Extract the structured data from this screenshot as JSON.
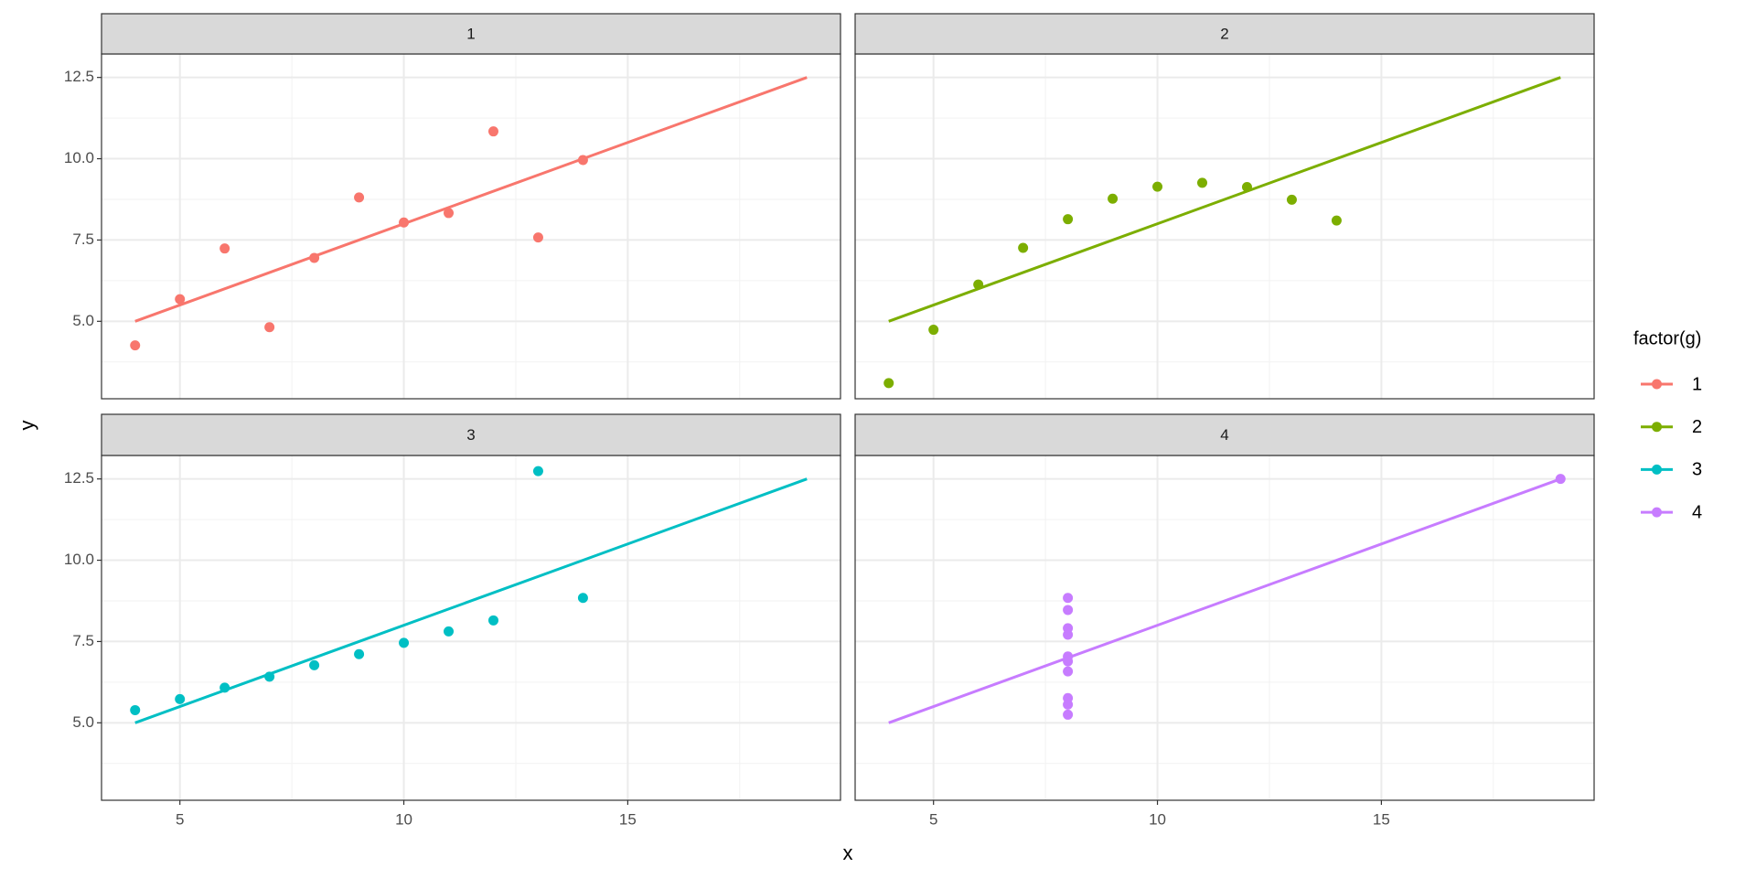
{
  "chart_data": {
    "type": "scatter",
    "x_label": "x",
    "y_label": "y",
    "legend_title": "factor(g)",
    "xlim": [
      3.25,
      19.75
    ],
    "ylim": [
      2.618,
      13.222
    ],
    "xticks": [
      5,
      10,
      15
    ],
    "yticks": [
      {
        "value": 5,
        "label": "5.0"
      },
      {
        "value": 7.5,
        "label": "7.5"
      },
      {
        "value": 10,
        "label": "10.0"
      },
      {
        "value": 12.5,
        "label": "12.5"
      }
    ],
    "grid": true,
    "series": [
      {
        "name": "1",
        "color": "#F8766D",
        "x": [
          10,
          8,
          13,
          9,
          11,
          14,
          6,
          4,
          12,
          7,
          5
        ],
        "values": [
          8.04,
          6.95,
          7.58,
          8.81,
          8.33,
          9.96,
          7.24,
          4.26,
          10.84,
          4.82,
          5.68
        ],
        "fit_x": [
          4,
          19
        ],
        "fit_values": [
          5,
          12.5
        ]
      },
      {
        "name": "2",
        "color": "#7CAE00",
        "x": [
          10,
          8,
          13,
          9,
          11,
          14,
          6,
          4,
          12,
          7,
          5
        ],
        "values": [
          9.14,
          8.14,
          8.74,
          8.77,
          9.26,
          8.1,
          6.13,
          3.1,
          9.13,
          7.26,
          4.74
        ],
        "fit_x": [
          4,
          19
        ],
        "fit_values": [
          5,
          12.5
        ]
      },
      {
        "name": "3",
        "color": "#00BFC4",
        "x": [
          10,
          8,
          13,
          9,
          11,
          14,
          6,
          4,
          12,
          7,
          5
        ],
        "values": [
          7.46,
          6.77,
          12.74,
          7.11,
          7.81,
          8.84,
          6.08,
          5.39,
          8.15,
          6.42,
          5.73
        ],
        "fit_x": [
          4,
          19
        ],
        "fit_values": [
          5,
          12.5
        ]
      },
      {
        "name": "4",
        "color": "#C77CFF",
        "x": [
          8,
          8,
          8,
          8,
          8,
          8,
          8,
          19,
          8,
          8,
          8
        ],
        "values": [
          6.58,
          5.76,
          7.71,
          8.84,
          8.47,
          7.04,
          5.25,
          12.5,
          5.56,
          7.91,
          6.89
        ],
        "fit_x": [
          4,
          19
        ],
        "fit_values": [
          5,
          12.5
        ]
      }
    ]
  }
}
